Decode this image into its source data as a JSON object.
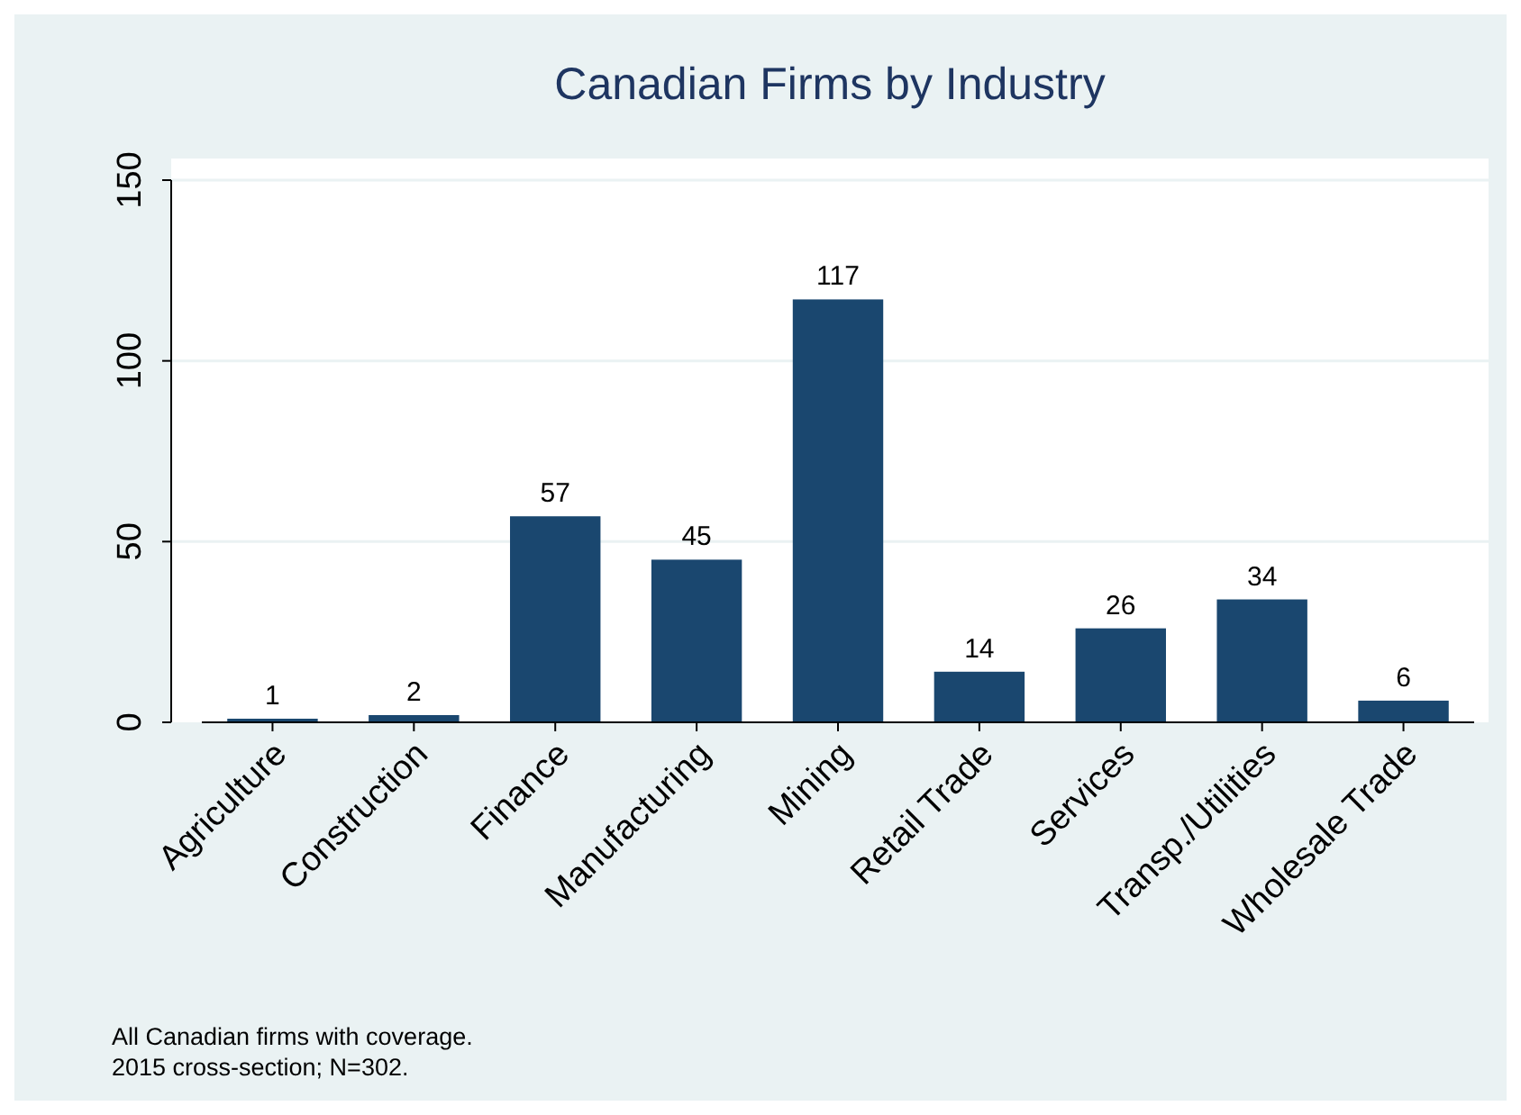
{
  "chart_data": {
    "type": "bar",
    "title": "Canadian Firms by Industry",
    "categories": [
      "Agriculture",
      "Construction",
      "Finance",
      "Manufacturing",
      "Mining",
      "Retail Trade",
      "Services",
      "Transp./Utilities",
      "Wholesale Trade"
    ],
    "values": [
      1,
      2,
      57,
      45,
      117,
      14,
      26,
      34,
      6
    ],
    "color": "#1a476f",
    "ylim": [
      0,
      150
    ],
    "yticks": [
      0,
      50,
      100,
      150
    ],
    "grid": "y",
    "data_labels": true,
    "annotations": [
      "All Canadian firms with coverage.",
      "2015 cross-section; N=302."
    ]
  }
}
